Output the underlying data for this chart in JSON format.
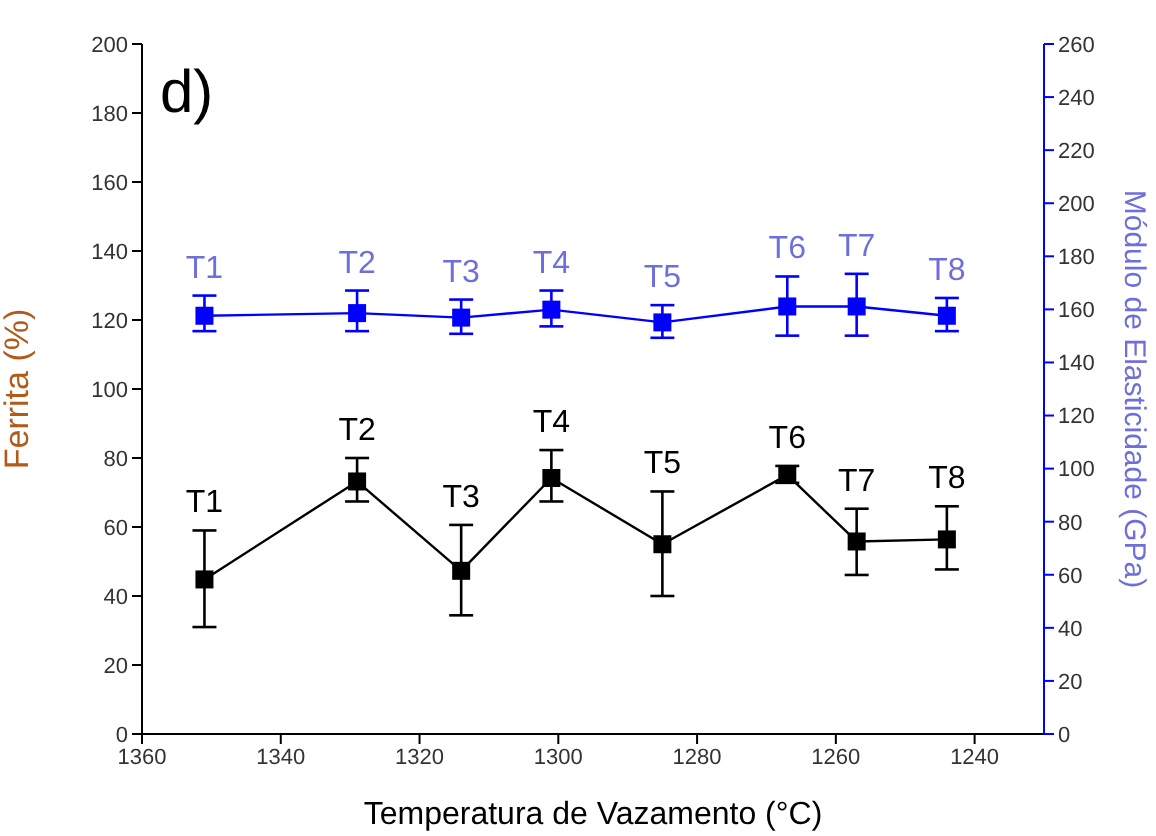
{
  "chart_data": {
    "type": "line",
    "annotations": [
      "d)"
    ],
    "xlabel": "Temperatura de Vazamento (°C)",
    "ylabel": "Ferrita (%)",
    "y2label": "Módulo de Elasticidade (GPa)",
    "x": [
      1351,
      1329,
      1314,
      1301,
      1285,
      1267,
      1257,
      1244
    ],
    "series": [
      {
        "color": "#000000",
        "values": [
          44.8,
          73.2,
          47.3,
          74.2,
          55,
          75.1,
          55.8,
          56.4
        ],
        "errors": [
          [
            31,
            59
          ],
          [
            67.4,
            80
          ],
          [
            34.4,
            60.6
          ],
          [
            67.4,
            82.3
          ],
          [
            40,
            70.3
          ],
          [
            72.8,
            77.7
          ],
          [
            46.1,
            65.3
          ],
          [
            47.7,
            66
          ]
        ],
        "value_labels": [
          "T1",
          "T2",
          "T3",
          "T4",
          "T5",
          "T6",
          "T7",
          "T8"
        ]
      },
      {
        "color": "#0000ff",
        "axis": "y2",
        "values": [
          157.6,
          158.6,
          156.9,
          159.9,
          155.1,
          161.1,
          161.1,
          157.6
        ],
        "errors": [
          [
            151.8,
            165.2
          ],
          [
            151.8,
            167.1
          ],
          [
            150.8,
            163.7
          ],
          [
            153.6,
            167.1
          ],
          [
            149.3,
            161.6
          ],
          [
            150.1,
            172.4
          ],
          [
            150.1,
            173.4
          ],
          [
            151.8,
            164.3
          ]
        ],
        "value_labels": [
          "T1",
          "T2",
          "T3",
          "T4",
          "T5",
          "T6",
          "T7",
          "T8"
        ]
      }
    ],
    "xlim": [
      1360,
      1230
    ],
    "xticks": [
      1360,
      1340,
      1320,
      1300,
      1280,
      1260,
      1240
    ],
    "ylim": [
      0,
      200
    ],
    "yticks": [
      0,
      20,
      40,
      60,
      80,
      100,
      120,
      140,
      160,
      180,
      200
    ],
    "y2lim": [
      0,
      260
    ],
    "y2ticks": [
      0,
      20,
      40,
      60,
      80,
      100,
      120,
      140,
      160,
      180,
      200,
      220,
      240,
      260
    ],
    "marker": "square",
    "line_style": "solid"
  }
}
